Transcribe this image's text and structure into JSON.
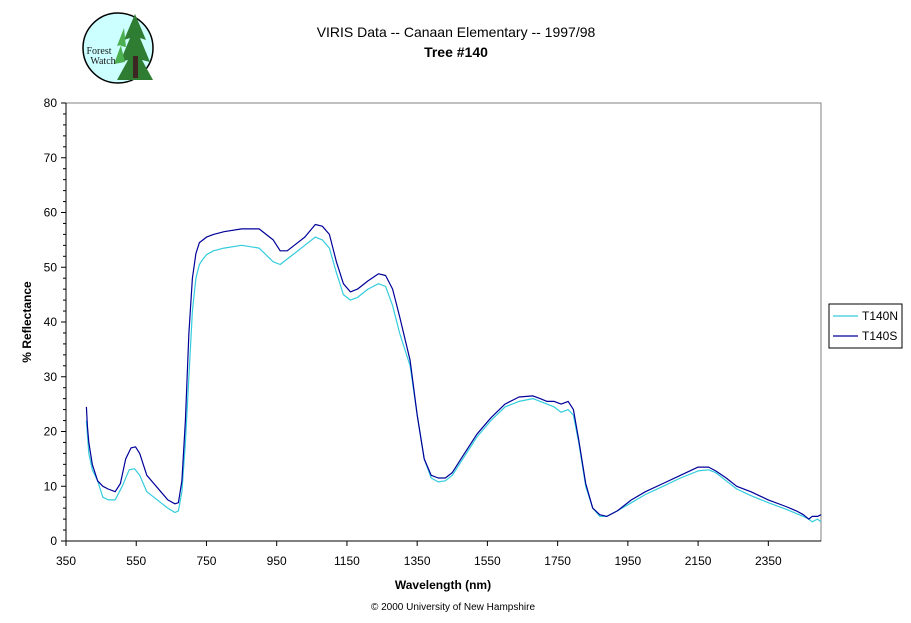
{
  "logo": {
    "line1": "Forest",
    "line2": "Watch"
  },
  "footer": "© 2000 University of New Hampshire",
  "chart_data": {
    "type": "line",
    "title": "VIRIS Data -- Canaan Elementary -- 1997/98",
    "subtitle": "Tree #140",
    "xlabel": "Wavelength (nm)",
    "ylabel": "% Reflectance",
    "xlim": [
      350,
      2500
    ],
    "ylim": [
      0,
      80
    ],
    "xticks": [
      350,
      550,
      750,
      950,
      1150,
      1350,
      1550,
      1750,
      1950,
      2150,
      2350
    ],
    "yticks": [
      0,
      10,
      20,
      30,
      40,
      50,
      60,
      70,
      80
    ],
    "grid": false,
    "legend_position": "right",
    "colors": {
      "T140N": "#33ccdd",
      "T140S": "#000099"
    },
    "series": [
      {
        "name": "T140N",
        "x": [
          408,
          415,
          425,
          440,
          455,
          470,
          490,
          510,
          530,
          545,
          560,
          580,
          600,
          620,
          640,
          660,
          670,
          680,
          690,
          700,
          710,
          720,
          730,
          740,
          750,
          770,
          800,
          850,
          900,
          940,
          960,
          980,
          1000,
          1030,
          1060,
          1080,
          1100,
          1120,
          1140,
          1160,
          1180,
          1210,
          1240,
          1260,
          1280,
          1300,
          1330,
          1350,
          1370,
          1390,
          1410,
          1430,
          1450,
          1480,
          1520,
          1560,
          1600,
          1640,
          1680,
          1700,
          1720,
          1740,
          1760,
          1780,
          1795,
          1810,
          1830,
          1850,
          1870,
          1890,
          1920,
          1960,
          2000,
          2050,
          2100,
          2150,
          2180,
          2200,
          2230,
          2260,
          2300,
          2350,
          2400,
          2430,
          2450,
          2465,
          2475,
          2490,
          2500
        ],
        "values": [
          22,
          16,
          13,
          11,
          8,
          7.5,
          7.5,
          10,
          13,
          13.2,
          12,
          9,
          8,
          7,
          6,
          5.2,
          5.5,
          9,
          18,
          30,
          42,
          48,
          50.5,
          51.5,
          52.3,
          53,
          53.5,
          54,
          53.5,
          51,
          50.5,
          51.5,
          52.5,
          54,
          55.5,
          55,
          53.5,
          49,
          45,
          44,
          44.5,
          46,
          47,
          46.5,
          43,
          38,
          32,
          23,
          15,
          11.5,
          10.8,
          11,
          12,
          15,
          19,
          22,
          24.5,
          25.5,
          26,
          25.5,
          25,
          24.5,
          23.5,
          24,
          23,
          18,
          10,
          6,
          4.5,
          4.5,
          5.5,
          7,
          8.5,
          10,
          11.5,
          12.8,
          13,
          12.5,
          11,
          9.5,
          8.3,
          7,
          5.8,
          5,
          4.5,
          4,
          3.5,
          4,
          3.5
        ]
      },
      {
        "name": "T140S",
        "x": [
          408,
          411,
          415,
          425,
          440,
          455,
          470,
          490,
          505,
          520,
          535,
          548,
          560,
          580,
          600,
          620,
          640,
          660,
          670,
          680,
          690,
          700,
          710,
          720,
          730,
          740,
          750,
          770,
          800,
          850,
          900,
          940,
          960,
          980,
          1000,
          1030,
          1060,
          1080,
          1100,
          1120,
          1140,
          1160,
          1180,
          1210,
          1240,
          1260,
          1280,
          1300,
          1330,
          1350,
          1370,
          1390,
          1410,
          1430,
          1450,
          1480,
          1520,
          1560,
          1600,
          1640,
          1680,
          1700,
          1720,
          1740,
          1760,
          1780,
          1795,
          1810,
          1830,
          1850,
          1870,
          1890,
          1920,
          1960,
          2000,
          2050,
          2100,
          2150,
          2180,
          2200,
          2230,
          2260,
          2300,
          2350,
          2400,
          2430,
          2450,
          2465,
          2475,
          2490,
          2500
        ],
        "values": [
          24.5,
          21,
          18,
          14,
          11,
          10,
          9.5,
          9,
          10.5,
          15,
          17,
          17.2,
          16,
          12,
          10.5,
          9,
          7.5,
          6.8,
          7,
          11,
          22,
          38,
          48,
          52.5,
          54.5,
          55,
          55.5,
          56,
          56.5,
          57,
          57,
          55,
          53,
          53,
          54,
          55.5,
          57.8,
          57.5,
          56,
          51,
          47,
          45.5,
          46,
          47.5,
          48.8,
          48.5,
          46,
          41,
          33,
          23,
          15,
          12,
          11.5,
          11.5,
          12.5,
          15.5,
          19.5,
          22.5,
          25,
          26.3,
          26.5,
          26,
          25.5,
          25.5,
          25,
          25.5,
          24,
          18.5,
          10.5,
          6,
          4.8,
          4.5,
          5.5,
          7.5,
          9,
          10.5,
          12,
          13.5,
          13.5,
          12.8,
          11.5,
          10,
          9,
          7.5,
          6.3,
          5.5,
          4.8,
          4,
          4.5,
          4.5,
          4.8
        ]
      }
    ]
  }
}
